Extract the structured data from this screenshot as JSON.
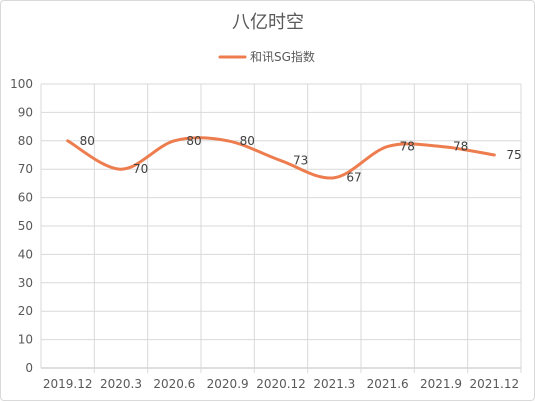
{
  "chart_data": {
    "type": "line",
    "title": "八亿时空",
    "categories": [
      "2019.12",
      "2020.3",
      "2020.6",
      "2020.9",
      "2020.12",
      "2021.3",
      "2021.6",
      "2021.9",
      "2021.12"
    ],
    "series": [
      {
        "name": "和讯SG指数",
        "values": [
          80,
          70,
          80,
          80,
          73,
          67,
          78,
          78,
          75
        ],
        "color": "#ED7D4E",
        "smooth": true
      }
    ],
    "xlabel": "",
    "ylabel": "",
    "ylim": [
      0,
      100
    ],
    "yticks": [
      0,
      10,
      20,
      30,
      40,
      50,
      60,
      70,
      80,
      90,
      100
    ],
    "grid": true,
    "legend_position": "top",
    "data_labels": true
  }
}
